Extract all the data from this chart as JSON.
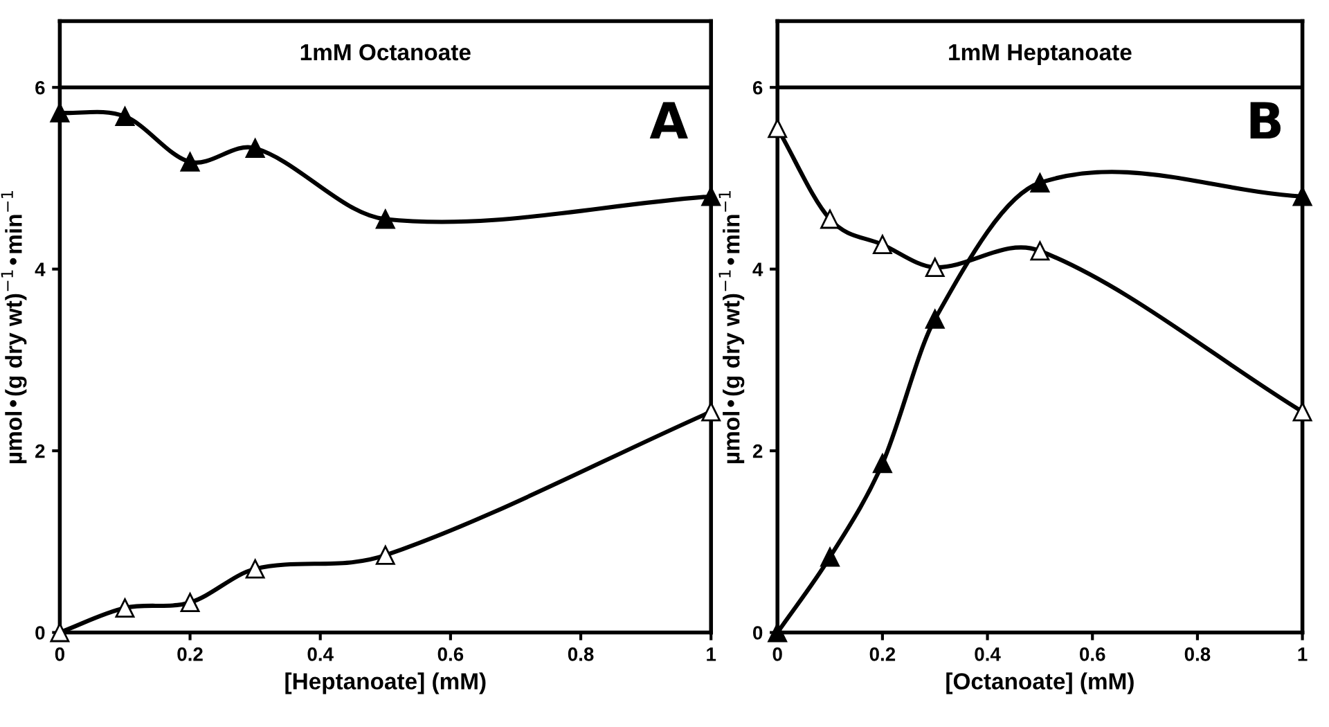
{
  "chart_data": [
    {
      "type": "line",
      "title": "1mM Octanoate",
      "xlabel": "[Heptanoate] (mM)",
      "ylabel": "µmol•(g dry wt)$^{−1}$•min$^{−1}$",
      "annotations": [
        "A"
      ],
      "x": [
        0,
        0.1,
        0.2,
        0.3,
        0.5,
        1
      ],
      "xlim": [
        0,
        1
      ],
      "ylim": [
        0,
        6.73
      ],
      "ref_lines": [
        {
          "axis": "y",
          "value": 6,
          "color": "#000000"
        }
      ],
      "xticks": [
        0,
        0.2,
        0.4,
        0.6,
        0.8,
        1
      ],
      "yticks": [
        0,
        2,
        4,
        6
      ],
      "marker": "triangle",
      "grid": false,
      "legend": false,
      "series": [
        {
          "color": "#000000",
          "values": [
            5.72,
            5.68,
            5.18,
            5.33,
            4.55,
            4.8
          ]
        },
        {
          "color": "#ffffff",
          "values": [
            0,
            0.27,
            0.33,
            0.7,
            0.85,
            2.43
          ]
        }
      ]
    },
    {
      "type": "line",
      "title": "1mM Heptanoate",
      "xlabel": "[Octanoate] (mM)",
      "ylabel": "µmol•(g dry wt)$^{−1}$•min$^{−1}$",
      "annotations": [
        "B"
      ],
      "x": [
        0,
        0.1,
        0.2,
        0.3,
        0.5,
        1
      ],
      "xlim": [
        0,
        1
      ],
      "ylim": [
        0,
        6.73
      ],
      "ref_lines": [
        {
          "axis": "y",
          "value": 6,
          "color": "#000000"
        }
      ],
      "xticks": [
        0,
        0.2,
        0.4,
        0.6,
        0.8,
        1
      ],
      "yticks": [
        0,
        2,
        4,
        6
      ],
      "marker": "triangle",
      "grid": false,
      "legend": false,
      "series": [
        {
          "color": "#000000",
          "values": [
            0,
            0.83,
            1.86,
            3.45,
            4.95,
            4.8
          ]
        },
        {
          "color": "#ffffff",
          "values": [
            5.55,
            4.55,
            4.27,
            4.02,
            4.2,
            2.43
          ]
        }
      ]
    }
  ]
}
